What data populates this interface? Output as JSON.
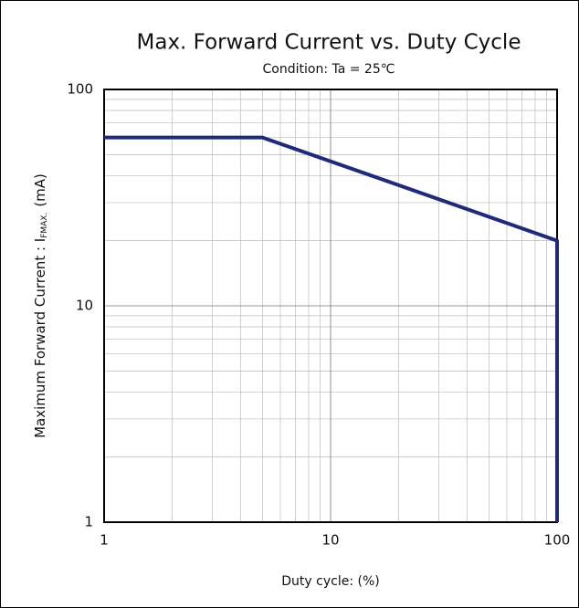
{
  "chart_data": {
    "type": "line",
    "title": "Max. Forward Current vs. Duty Cycle",
    "subtitle": "Condition: Ta = 25℃",
    "x_label": "Duty cycle: (%)",
    "y_label": "Maximum Forward Current : I",
    "y_label_sub": "FMAX.",
    "y_label_unit": "(mA)",
    "x": [
      1,
      5,
      100,
      100
    ],
    "series": [
      {
        "color": "#1f2a7a",
        "values": [
          60,
          60,
          20,
          1
        ]
      }
    ],
    "xlim": [
      1,
      100
    ],
    "ylim": [
      1,
      100
    ],
    "xticks": [
      1,
      10,
      100
    ],
    "yticks": [
      1,
      10,
      100
    ],
    "x_minor_ticks": [
      2,
      3,
      4,
      5,
      6,
      7,
      8,
      9,
      20,
      30,
      40,
      50,
      60,
      70,
      80,
      90
    ],
    "y_minor_ticks": [
      2,
      3,
      4,
      5,
      6,
      7,
      8,
      9,
      20,
      30,
      40,
      50,
      60,
      70,
      80,
      90
    ],
    "xscale": "log",
    "yscale": "log",
    "grid": true
  }
}
